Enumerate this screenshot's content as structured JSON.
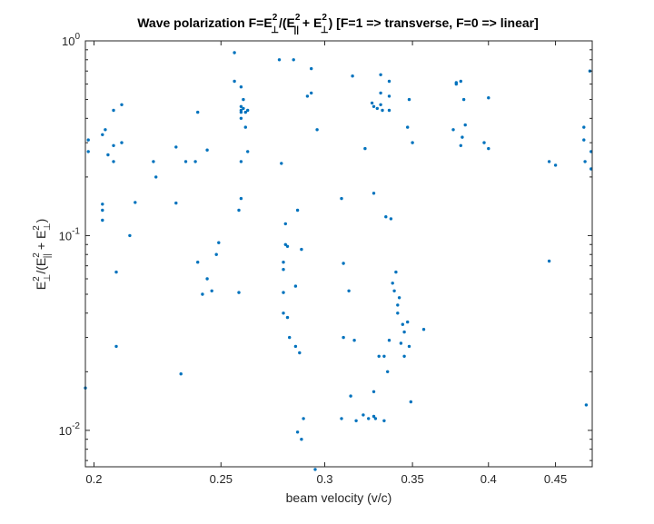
{
  "chart_data": {
    "type": "scatter",
    "title": {
      "prefix": "Wave polarization F=E",
      "sup1": "2",
      "sub1": "⊥",
      "part2": "/(E",
      "sup2": "2",
      "sub2": "||",
      "part3": " + E",
      "sup3": "2",
      "sub3": "⊥",
      "suffix": ") [F=1 => transverse, F=0 => linear]"
    },
    "xlabel": "beam velocity (v/c)",
    "ylabel": {
      "p1": "E",
      "sup1": "2",
      "sub1": "⊥",
      "p2": "/(E",
      "sup2": "2",
      "sub2": "||",
      "p3": " + E",
      "sup3": "2",
      "sub3": "⊥",
      "p4": ")"
    },
    "xlim": [
      0.197,
      0.48
    ],
    "ylim": [
      0.0065,
      1.0
    ],
    "yscale": "log",
    "xscale": "log",
    "x_ticks": [
      {
        "value": 0.2,
        "label": "0.2"
      },
      {
        "value": 0.25,
        "label": "0.25"
      },
      {
        "value": 0.3,
        "label": "0.3"
      },
      {
        "value": 0.35,
        "label": "0.35"
      },
      {
        "value": 0.4,
        "label": "0.4"
      },
      {
        "value": 0.45,
        "label": "0.45"
      }
    ],
    "y_ticks": [
      {
        "value": 0.01,
        "base": "10",
        "exp": "-2"
      },
      {
        "value": 0.1,
        "base": "10",
        "exp": "-1"
      },
      {
        "value": 1.0,
        "base": "10",
        "exp": "0"
      }
    ],
    "marker_color": "#0072BD",
    "grid": false,
    "series": [
      {
        "points": [
          [
            0.197,
            0.0165
          ],
          [
            0.198,
            0.31
          ],
          [
            0.198,
            0.27
          ],
          [
            0.203,
            0.33
          ],
          [
            0.203,
            0.145
          ],
          [
            0.203,
            0.135
          ],
          [
            0.203,
            0.12
          ],
          [
            0.204,
            0.35
          ],
          [
            0.205,
            0.26
          ],
          [
            0.207,
            0.29
          ],
          [
            0.207,
            0.24
          ],
          [
            0.207,
            0.44
          ],
          [
            0.208,
            0.065
          ],
          [
            0.208,
            0.027
          ],
          [
            0.21,
            0.47
          ],
          [
            0.21,
            0.3
          ],
          [
            0.213,
            0.1
          ],
          [
            0.215,
            0.148
          ],
          [
            0.222,
            0.24
          ],
          [
            0.223,
            0.2
          ],
          [
            0.231,
            0.285
          ],
          [
            0.231,
            0.147
          ],
          [
            0.233,
            0.0195
          ],
          [
            0.235,
            0.24
          ],
          [
            0.239,
            0.24
          ],
          [
            0.24,
            0.43
          ],
          [
            0.24,
            0.073
          ],
          [
            0.242,
            0.05
          ],
          [
            0.244,
            0.06
          ],
          [
            0.244,
            0.275
          ],
          [
            0.246,
            0.052
          ],
          [
            0.248,
            0.08
          ],
          [
            0.249,
            0.092
          ],
          [
            0.256,
            0.87
          ],
          [
            0.256,
            0.62
          ],
          [
            0.258,
            0.135
          ],
          [
            0.258,
            0.051
          ],
          [
            0.259,
            0.58
          ],
          [
            0.259,
            0.46
          ],
          [
            0.259,
            0.44
          ],
          [
            0.259,
            0.43
          ],
          [
            0.259,
            0.4
          ],
          [
            0.259,
            0.24
          ],
          [
            0.259,
            0.155
          ],
          [
            0.26,
            0.5
          ],
          [
            0.26,
            0.45
          ],
          [
            0.261,
            0.43
          ],
          [
            0.261,
            0.36
          ],
          [
            0.262,
            0.44
          ],
          [
            0.262,
            0.27
          ],
          [
            0.277,
            0.8
          ],
          [
            0.278,
            0.235
          ],
          [
            0.279,
            0.073
          ],
          [
            0.279,
            0.067
          ],
          [
            0.279,
            0.051
          ],
          [
            0.279,
            0.04
          ],
          [
            0.28,
            0.115
          ],
          [
            0.28,
            0.09
          ],
          [
            0.281,
            0.088
          ],
          [
            0.281,
            0.038
          ],
          [
            0.282,
            0.03
          ],
          [
            0.284,
            0.8
          ],
          [
            0.285,
            0.055
          ],
          [
            0.285,
            0.027
          ],
          [
            0.286,
            0.135
          ],
          [
            0.286,
            0.0098
          ],
          [
            0.287,
            0.025
          ],
          [
            0.288,
            0.009
          ],
          [
            0.288,
            0.085
          ],
          [
            0.289,
            0.0115
          ],
          [
            0.291,
            0.52
          ],
          [
            0.293,
            0.54
          ],
          [
            0.293,
            0.72
          ],
          [
            0.295,
            0.0063
          ],
          [
            0.296,
            0.35
          ],
          [
            0.309,
            0.155
          ],
          [
            0.309,
            0.0115
          ],
          [
            0.31,
            0.072
          ],
          [
            0.31,
            0.03
          ],
          [
            0.313,
            0.052
          ],
          [
            0.314,
            0.015
          ],
          [
            0.315,
            0.66
          ],
          [
            0.316,
            0.029
          ],
          [
            0.317,
            0.0112
          ],
          [
            0.321,
            0.012
          ],
          [
            0.322,
            0.28
          ],
          [
            0.324,
            0.0115
          ],
          [
            0.326,
            0.48
          ],
          [
            0.327,
            0.165
          ],
          [
            0.327,
            0.46
          ],
          [
            0.327,
            0.0118
          ],
          [
            0.327,
            0.0158
          ],
          [
            0.328,
            0.0115
          ],
          [
            0.329,
            0.45
          ],
          [
            0.33,
            0.024
          ],
          [
            0.331,
            0.67
          ],
          [
            0.331,
            0.54
          ],
          [
            0.331,
            0.47
          ],
          [
            0.332,
            0.44
          ],
          [
            0.333,
            0.024
          ],
          [
            0.333,
            0.0112
          ],
          [
            0.334,
            0.125
          ],
          [
            0.335,
            0.02
          ],
          [
            0.336,
            0.44
          ],
          [
            0.336,
            0.62
          ],
          [
            0.336,
            0.52
          ],
          [
            0.336,
            0.029
          ],
          [
            0.337,
            0.122
          ],
          [
            0.338,
            0.057
          ],
          [
            0.339,
            0.052
          ],
          [
            0.34,
            0.065
          ],
          [
            0.341,
            0.044
          ],
          [
            0.341,
            0.04
          ],
          [
            0.342,
            0.048
          ],
          [
            0.343,
            0.028
          ],
          [
            0.344,
            0.035
          ],
          [
            0.345,
            0.032
          ],
          [
            0.345,
            0.024
          ],
          [
            0.347,
            0.36
          ],
          [
            0.347,
            0.036
          ],
          [
            0.348,
            0.5
          ],
          [
            0.348,
            0.027
          ],
          [
            0.349,
            0.014
          ],
          [
            0.35,
            0.3
          ],
          [
            0.357,
            0.033
          ],
          [
            0.376,
            0.35
          ],
          [
            0.378,
            0.61
          ],
          [
            0.378,
            0.6
          ],
          [
            0.381,
            0.62
          ],
          [
            0.381,
            0.29
          ],
          [
            0.382,
            0.32
          ],
          [
            0.383,
            0.5
          ],
          [
            0.384,
            0.37
          ],
          [
            0.397,
            0.3
          ],
          [
            0.4,
            0.28
          ],
          [
            0.4,
            0.51
          ],
          [
            0.445,
            0.24
          ],
          [
            0.445,
            0.074
          ],
          [
            0.45,
            0.23
          ],
          [
            0.473,
            0.36
          ],
          [
            0.473,
            0.31
          ],
          [
            0.474,
            0.24
          ],
          [
            0.475,
            0.0135
          ],
          [
            0.478,
            0.7
          ],
          [
            0.479,
            0.27
          ],
          [
            0.479,
            0.22
          ]
        ]
      }
    ]
  }
}
